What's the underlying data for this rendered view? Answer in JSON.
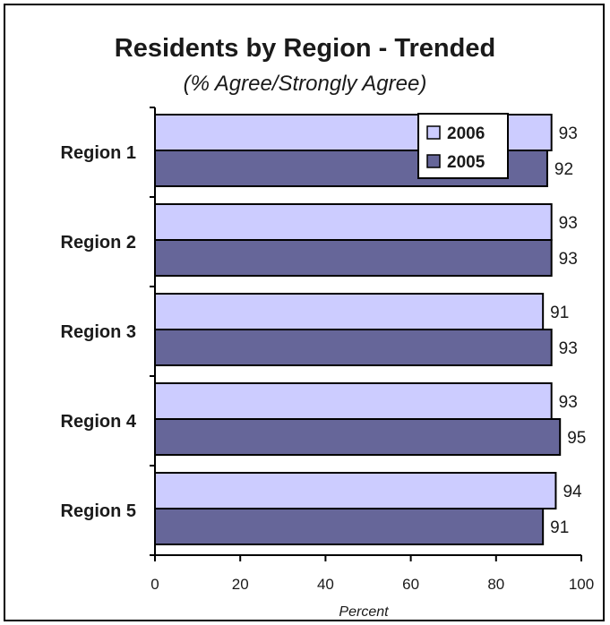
{
  "colors": {
    "series_2006": "#ccccff",
    "series_2005": "#666699",
    "outline": "#000000"
  },
  "chart_data": {
    "type": "bar",
    "orientation": "horizontal",
    "title": "Residents by Region - Trended",
    "subtitle": "(% Agree/Strongly Agree)",
    "xlabel": "Percent",
    "ylabel": "",
    "categories": [
      "Region 1",
      "Region 2",
      "Region 3",
      "Region 4",
      "Region 5"
    ],
    "series": [
      {
        "name": "2006",
        "values": [
          93,
          93,
          91,
          93,
          94
        ]
      },
      {
        "name": "2005",
        "values": [
          92,
          93,
          93,
          95,
          91
        ]
      }
    ],
    "xlim": [
      0,
      100
    ],
    "xticks": [
      0,
      20,
      40,
      60,
      80,
      100
    ],
    "grid": false,
    "legend": "top-right",
    "data_labels": true
  }
}
